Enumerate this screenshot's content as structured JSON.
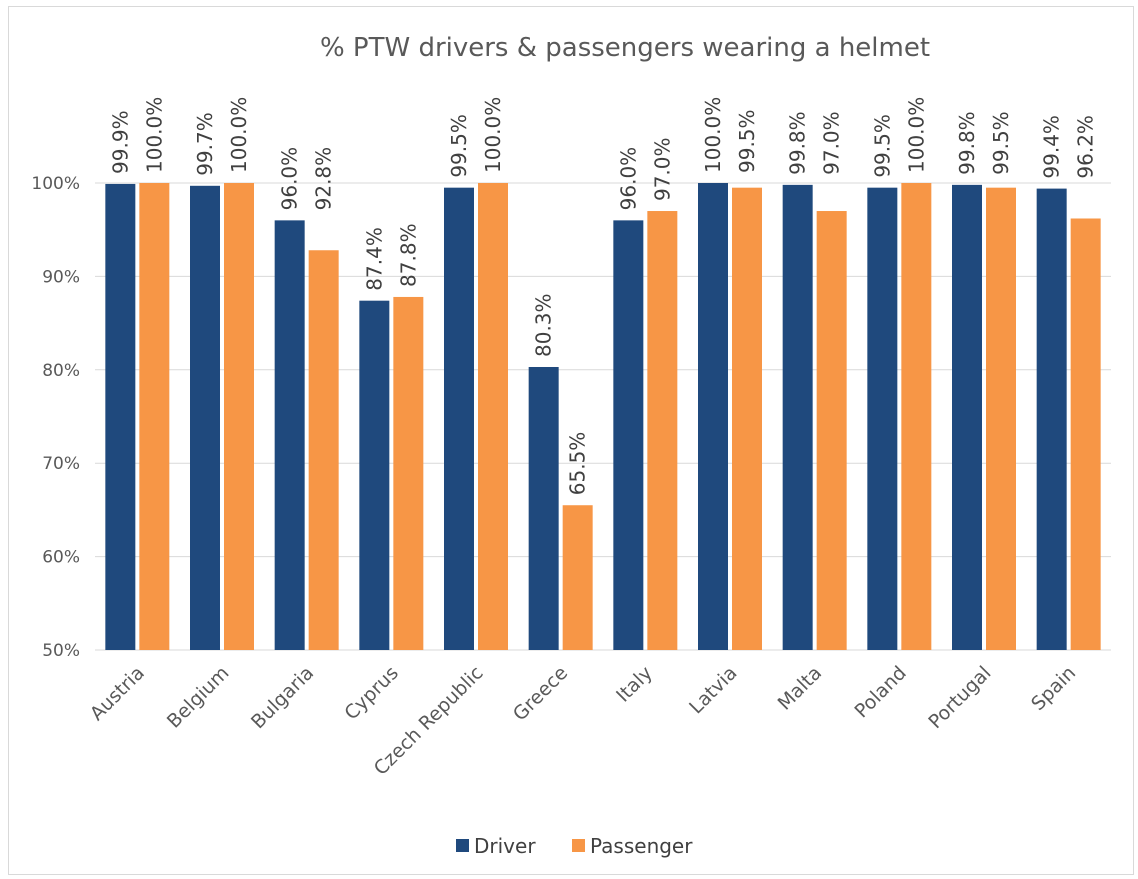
{
  "chart_data": {
    "type": "bar",
    "title": "% PTW drivers & passengers wearing a helmet",
    "xlabel": "",
    "ylabel": "",
    "ylim": [
      50,
      100
    ],
    "yticks": [
      50,
      60,
      70,
      80,
      90,
      100
    ],
    "ytick_suffix": "%",
    "grid": true,
    "legend_position": "bottom",
    "categories": [
      "Austria",
      "Belgium",
      "Bulgaria",
      "Cyprus",
      "Czech Republic",
      "Greece",
      "Italy",
      "Latvia",
      "Malta",
      "Poland",
      "Portugal",
      "Spain"
    ],
    "series": [
      {
        "name": "Driver",
        "color": "#1f497d",
        "values": [
          99.9,
          99.7,
          96.0,
          87.4,
          99.5,
          80.3,
          96.0,
          100.0,
          99.8,
          99.5,
          99.8,
          99.4
        ],
        "labels": [
          "99.9%",
          "99.7%",
          "96.0%",
          "87.4%",
          "99.5%",
          "80.3%",
          "96.0%",
          "100.0%",
          "99.8%",
          "99.5%",
          "99.8%",
          "99.4%"
        ]
      },
      {
        "name": "Passenger",
        "color": "#f79646",
        "values": [
          100.0,
          100.0,
          92.8,
          87.8,
          100.0,
          65.5,
          97.0,
          99.5,
          97.0,
          100.0,
          99.5,
          96.2
        ],
        "labels": [
          "100.0%",
          "100.0%",
          "92.8%",
          "87.8%",
          "100.0%",
          "65.5%",
          "97.0%",
          "99.5%",
          "97.0%",
          "100.0%",
          "99.5%",
          "96.2%"
        ]
      }
    ]
  }
}
